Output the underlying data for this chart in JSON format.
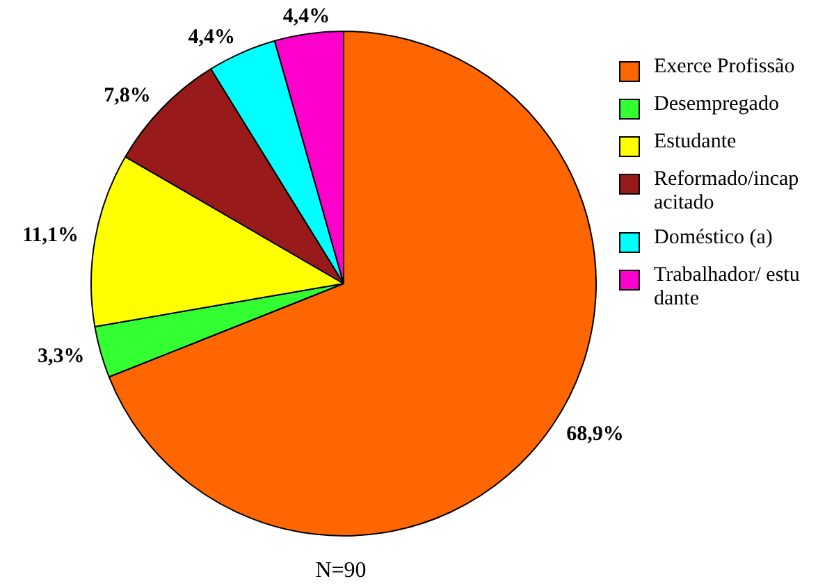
{
  "chart_data": {
    "type": "pie",
    "categories": [
      "Exerce Profissão",
      "Desempregado",
      "Estudante",
      "Reformado/incapacitado",
      "Doméstico (a)",
      "Trabalhador/ estudante"
    ],
    "values": [
      68.9,
      3.3,
      11.1,
      7.8,
      4.4,
      4.4
    ],
    "colors": [
      "#ff6600",
      "#33ff33",
      "#ffff00",
      "#991a1a",
      "#00ffff",
      "#ff00cc"
    ],
    "value_labels": [
      "68,9%",
      "3,3%",
      "11,1%",
      "7,8%",
      "4,4%",
      "4,4%"
    ],
    "legend": "right",
    "annotations": [
      "N=90"
    ]
  }
}
